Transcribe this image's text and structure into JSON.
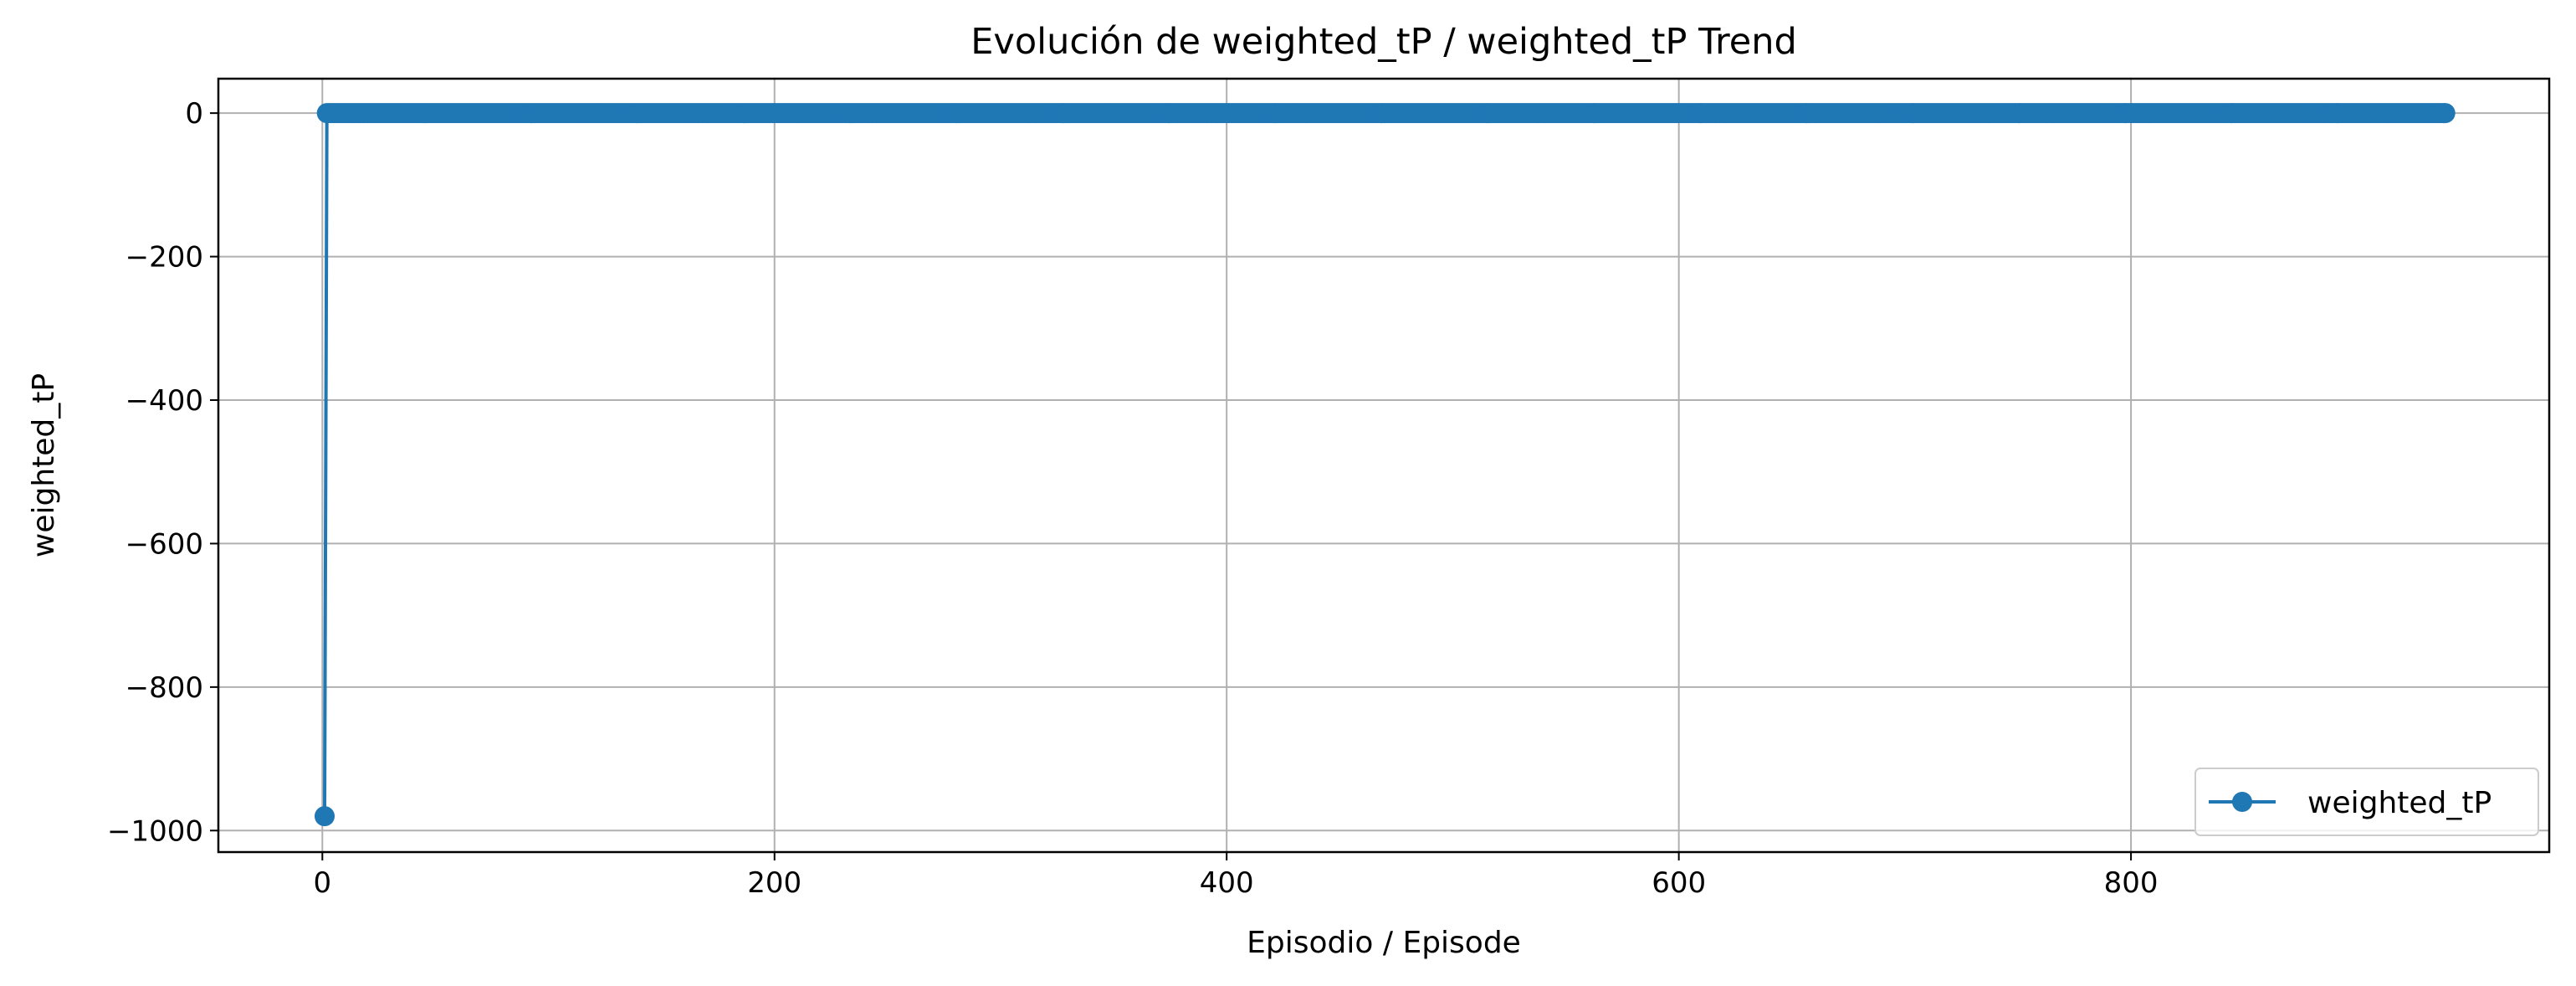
{
  "chart_data": {
    "type": "line",
    "title": "Evolución de weighted_tP / weighted_tP Trend",
    "xlabel": "Episodio / Episode",
    "ylabel": "weighted_tP",
    "xlim": [
      -46,
      985
    ],
    "ylim": [
      -1030,
      48
    ],
    "xticks": [
      0,
      200,
      400,
      600,
      800
    ],
    "yticks": [
      0,
      -200,
      -400,
      -600,
      -800,
      -1000
    ],
    "xtick_labels": [
      "0",
      "200",
      "400",
      "600",
      "800"
    ],
    "ytick_labels": [
      "0",
      "−200",
      "−400",
      "−600",
      "−800",
      "−1000"
    ],
    "grid": true,
    "legend": "lower right",
    "series": [
      {
        "name": "weighted_tP",
        "color": "#1f77b4",
        "marker": "circle",
        "x_start": 1,
        "x_end": 939,
        "values": [
          -980,
          0
        ]
      }
    ]
  }
}
